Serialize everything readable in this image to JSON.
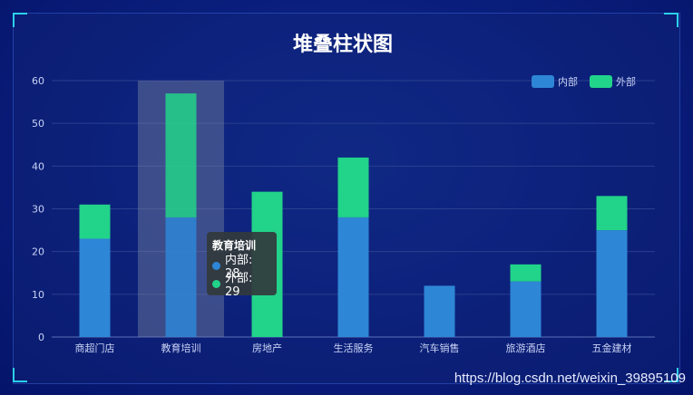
{
  "chart_data": {
    "type": "bar",
    "stacked": true,
    "title": "堆叠柱状图",
    "categories": [
      "商超门店",
      "教育培训",
      "房地产",
      "生活服务",
      "汽车销售",
      "旅游酒店",
      "五金建材"
    ],
    "series": [
      {
        "name": "内部",
        "values": [
          23,
          28,
          0,
          28,
          12,
          13,
          25
        ]
      },
      {
        "name": "外部",
        "values": [
          8,
          29,
          34,
          14,
          0,
          4,
          8
        ]
      }
    ],
    "ylim": [
      0,
      60
    ],
    "yticks": [
      0,
      10,
      20,
      30,
      40,
      50,
      60
    ],
    "grid": true,
    "legend": "top-right",
    "highlighted_category": "教育培训"
  },
  "colors": {
    "inner": "#2e86d6",
    "outer": "#22d38a",
    "grid": "#2a3f8f",
    "highlight": "rgba(120,130,160,0.45)"
  },
  "tooltip": {
    "title": "教育培训",
    "rows": [
      {
        "label": "内部: 28",
        "color": "#2e86d6"
      },
      {
        "label": "外部: 29",
        "color": "#22d38a"
      }
    ]
  },
  "watermark": "https://blog.csdn.net/weixin_39895109"
}
